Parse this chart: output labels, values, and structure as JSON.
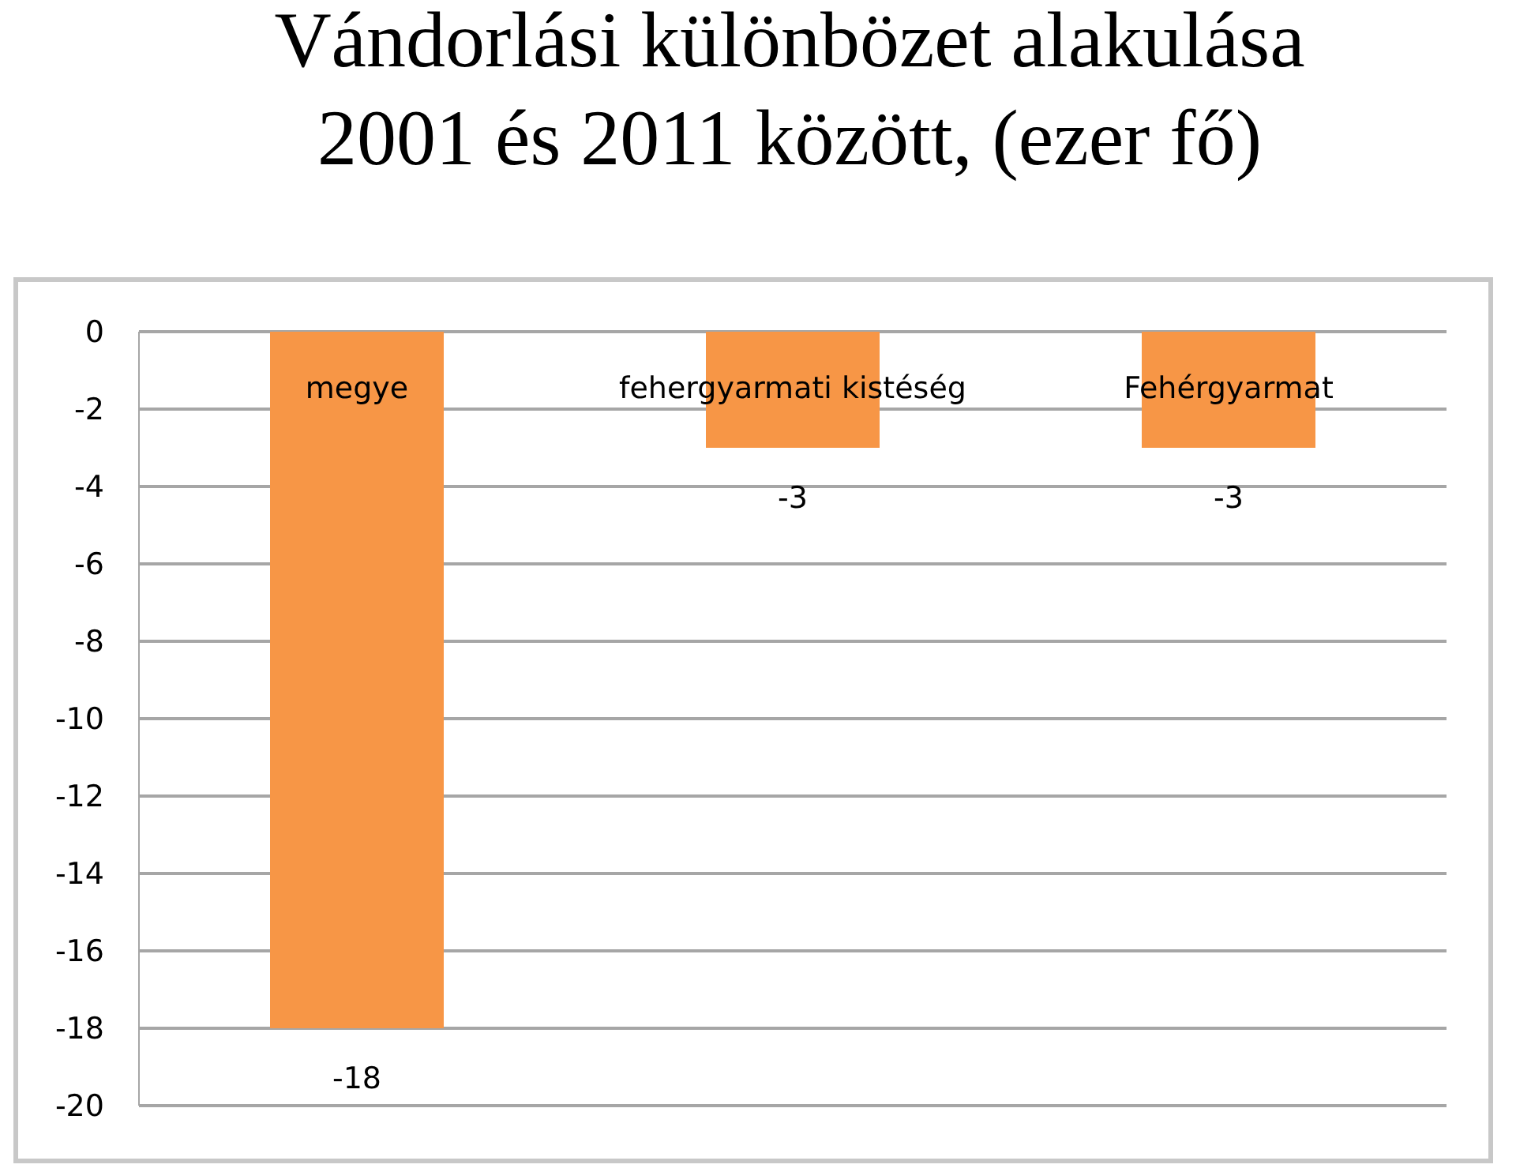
{
  "chart_data": {
    "type": "bar",
    "title": "Vándorlási különbözet alakulása\n2001 és 2011 között, (ezer fő)",
    "categories": [
      "megye",
      "fehergyarmati kistéség",
      "Fehérgyarmat"
    ],
    "values": [
      -18,
      -3,
      -3
    ],
    "color": "#f79646",
    "ylim": [
      -20,
      0
    ],
    "yticks": [
      -20,
      -18,
      -16,
      -14,
      -12,
      -10,
      -8,
      -6,
      -4,
      -2,
      0
    ],
    "grid": "y",
    "data_labels": true
  }
}
